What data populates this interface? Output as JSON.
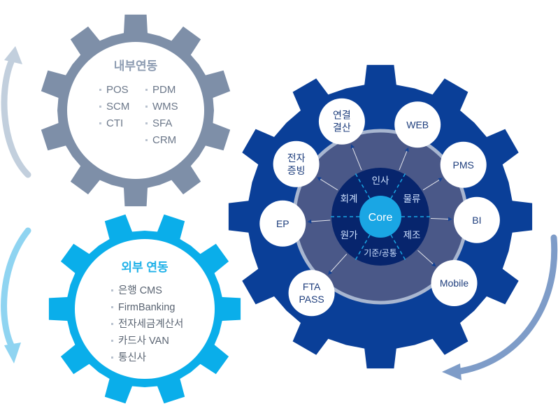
{
  "internal": {
    "title": "내부연동",
    "items_left": [
      "POS",
      "SCM",
      "CTI"
    ],
    "items_right": [
      "PDM",
      "WMS",
      "SFA",
      "CRM"
    ],
    "color": "#7e8fa8"
  },
  "external": {
    "title": "외부 연동",
    "items": [
      "은행 CMS",
      "FirmBanking",
      "전자세금계산서",
      "카드사 VAN",
      "통신사"
    ],
    "color": "#0aaeea"
  },
  "core_system": {
    "center": "Core",
    "segments": [
      "인사",
      "물류",
      "제조",
      "기준/공통",
      "원가",
      "회계"
    ],
    "modules": [
      {
        "lines": [
          "연결",
          "결산"
        ]
      },
      {
        "lines": [
          "WEB"
        ]
      },
      {
        "lines": [
          "PMS"
        ]
      },
      {
        "lines": [
          "BI"
        ]
      },
      {
        "lines": [
          "Mobile"
        ]
      },
      {
        "lines": [
          "FTA",
          "PASS"
        ]
      },
      {
        "lines": [
          "EP"
        ]
      },
      {
        "lines": [
          "전자",
          "증빙"
        ]
      }
    ],
    "color": "#0a3f98"
  }
}
